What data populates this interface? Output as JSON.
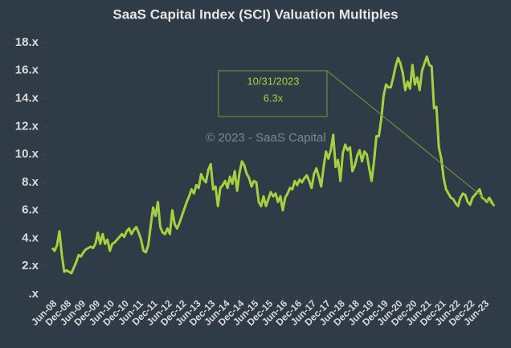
{
  "chart_data": {
    "type": "line",
    "title": "SaaS Capital Index (SCI) Valuation Multiples",
    "watermark": "© 2023 - SaaS Capital",
    "x": [
      "Jun-08",
      "Jul-08",
      "Aug-08",
      "Sep-08",
      "Oct-08",
      "Nov-08",
      "Dec-08",
      "Jan-09",
      "Feb-09",
      "Mar-09",
      "Apr-09",
      "May-09",
      "Jun-09",
      "Jul-09",
      "Aug-09",
      "Sep-09",
      "Oct-09",
      "Nov-09",
      "Dec-09",
      "Jan-10",
      "Feb-10",
      "Mar-10",
      "Apr-10",
      "May-10",
      "Jun-10",
      "Jul-10",
      "Aug-10",
      "Sep-10",
      "Oct-10",
      "Nov-10",
      "Dec-10",
      "Jan-11",
      "Feb-11",
      "Mar-11",
      "Apr-11",
      "May-11",
      "Jun-11",
      "Jul-11",
      "Aug-11",
      "Sep-11",
      "Oct-11",
      "Nov-11",
      "Dec-11",
      "Jan-12",
      "Feb-12",
      "Mar-12",
      "Apr-12",
      "May-12",
      "Jun-12",
      "Jul-12",
      "Aug-12",
      "Sep-12",
      "Oct-12",
      "Nov-12",
      "Dec-12",
      "Jan-13",
      "Feb-13",
      "Mar-13",
      "Apr-13",
      "May-13",
      "Jun-13",
      "Jul-13",
      "Aug-13",
      "Sep-13",
      "Oct-13",
      "Nov-13",
      "Dec-13",
      "Jan-14",
      "Feb-14",
      "Mar-14",
      "Apr-14",
      "May-14",
      "Jun-14",
      "Jul-14",
      "Aug-14",
      "Sep-14",
      "Oct-14",
      "Nov-14",
      "Dec-14",
      "Jan-15",
      "Feb-15",
      "Mar-15",
      "Apr-15",
      "May-15",
      "Jun-15",
      "Jul-15",
      "Aug-15",
      "Sep-15",
      "Oct-15",
      "Nov-15",
      "Dec-15",
      "Jan-16",
      "Feb-16",
      "Mar-16",
      "Apr-16",
      "May-16",
      "Jun-16",
      "Jul-16",
      "Aug-16",
      "Sep-16",
      "Oct-16",
      "Nov-16",
      "Dec-16",
      "Jan-17",
      "Feb-17",
      "Mar-17",
      "Apr-17",
      "May-17",
      "Jun-17",
      "Jul-17",
      "Aug-17",
      "Sep-17",
      "Oct-17",
      "Nov-17",
      "Dec-17",
      "Jan-18",
      "Feb-18",
      "Mar-18",
      "Apr-18",
      "May-18",
      "Jun-18",
      "Jul-18",
      "Aug-18",
      "Sep-18",
      "Oct-18",
      "Nov-18",
      "Dec-18",
      "Jan-19",
      "Feb-19",
      "Mar-19",
      "Apr-19",
      "May-19",
      "Jun-19",
      "Jul-19",
      "Aug-19",
      "Sep-19",
      "Oct-19",
      "Nov-19",
      "Dec-19",
      "Jan-20",
      "Feb-20",
      "Mar-20",
      "Apr-20",
      "May-20",
      "Jun-20",
      "Jul-20",
      "Aug-20",
      "Sep-20",
      "Oct-20",
      "Nov-20",
      "Dec-20",
      "Jan-21",
      "Feb-21",
      "Mar-21",
      "Apr-21",
      "May-21",
      "Jun-21",
      "Jul-21",
      "Aug-21",
      "Sep-21",
      "Oct-21",
      "Nov-21",
      "Dec-21",
      "Jan-22",
      "Feb-22",
      "Mar-22",
      "Apr-22",
      "May-22",
      "Jun-22",
      "Jul-22",
      "Aug-22",
      "Sep-22",
      "Oct-22",
      "Nov-22",
      "Dec-22",
      "Jan-23",
      "Feb-23",
      "Mar-23",
      "Apr-23",
      "May-23",
      "Jun-23",
      "Jul-23",
      "Aug-23",
      "Sep-23",
      "Oct-23"
    ],
    "series": [
      {
        "color": "#a4d13f",
        "values": [
          3.3,
          3.1,
          3.5,
          4.5,
          2.8,
          1.6,
          1.7,
          1.6,
          1.5,
          1.9,
          2.3,
          2.8,
          2.7,
          3.0,
          3.2,
          3.3,
          3.4,
          3.3,
          3.6,
          4.4,
          3.6,
          4.3,
          3.6,
          3.9,
          3.1,
          3.6,
          3.7,
          3.9,
          4.1,
          4.3,
          4.1,
          4.5,
          4.7,
          4.3,
          4.6,
          4.8,
          4.4,
          3.9,
          3.1,
          3.0,
          3.5,
          4.9,
          6.2,
          5.6,
          6.6,
          4.8,
          4.4,
          4.3,
          4.7,
          4.3,
          6.0,
          5.0,
          4.7,
          5.1,
          5.6,
          6.1,
          6.6,
          7.0,
          7.5,
          7.2,
          7.8,
          7.6,
          8.6,
          8.2,
          8.0,
          8.9,
          9.3,
          7.5,
          7.7,
          6.3,
          7.6,
          7.8,
          8.1,
          7.6,
          8.4,
          7.9,
          8.8,
          7.4,
          8.7,
          9.5,
          9.2,
          8.6,
          8.3,
          7.7,
          8.1,
          8.0,
          6.6,
          6.3,
          7.0,
          6.3,
          6.8,
          7.3,
          7.0,
          7.2,
          6.6,
          7.0,
          6.0,
          6.9,
          7.2,
          7.6,
          7.5,
          8.1,
          7.8,
          8.2,
          8.0,
          8.3,
          8.5,
          8.1,
          7.6,
          8.6,
          9.0,
          8.4,
          7.7,
          9.1,
          10.2,
          9.7,
          10.3,
          11.4,
          9.1,
          9.6,
          8.1,
          10.1,
          10.7,
          10.3,
          10.5,
          8.8,
          9.2,
          9.9,
          10.3,
          9.5,
          10.2,
          10.0,
          9.0,
          8.1,
          9.5,
          11.3,
          11.3,
          12.5,
          14.2,
          15.0,
          14.8,
          14.8,
          15.5,
          16.3,
          16.9,
          16.5,
          15.8,
          14.6,
          15.2,
          14.7,
          16.4,
          15.0,
          15.5,
          14.6,
          16.0,
          16.5,
          17.0,
          16.4,
          16.3,
          13.3,
          13.4,
          10.5,
          9.7,
          8.3,
          7.5,
          7.2,
          6.9,
          6.8,
          6.5,
          6.3,
          6.9,
          7.2,
          7.1,
          6.6,
          6.4,
          6.9,
          7.1,
          7.3,
          7.5,
          6.9,
          6.8,
          6.6,
          6.9,
          6.6,
          6.3
        ]
      }
    ],
    "xticks": [
      "Jun-08",
      "Dec-08",
      "Jun-09",
      "Dec-09",
      "Jun-10",
      "Dec-10",
      "Jun-11",
      "Dec-11",
      "Jun-12",
      "Dec-12",
      "Jun-13",
      "Dec-13",
      "Jun-14",
      "Dec-14",
      "Jun-15",
      "Dec-15",
      "Jun-16",
      "Dec-16",
      "Jun-17",
      "Dec-17",
      "Jun-18",
      "Dec-18",
      "Jun-19",
      "Dec-19",
      "Jun-20",
      "Dec-20",
      "Jun-21",
      "Dec-21",
      "Jun-22",
      "Dec-22",
      "Jun-23"
    ],
    "ylim": [
      0,
      18
    ],
    "yticks": [
      {
        "value": 0,
        "label": ".x"
      },
      {
        "value": 2,
        "label": "2.x"
      },
      {
        "value": 4,
        "label": "4.x"
      },
      {
        "value": 6,
        "label": "6.x"
      },
      {
        "value": 8,
        "label": "8.x"
      },
      {
        "value": 10,
        "label": "10.x"
      },
      {
        "value": 12,
        "label": "12.x"
      },
      {
        "value": 14,
        "label": "14.x"
      },
      {
        "value": 16,
        "label": "16.x"
      },
      {
        "value": 18,
        "label": "18.x"
      }
    ],
    "annotation": {
      "title": "10/31/2023",
      "x": "Oct-23",
      "value": 6.3,
      "label": "6.3x"
    }
  }
}
